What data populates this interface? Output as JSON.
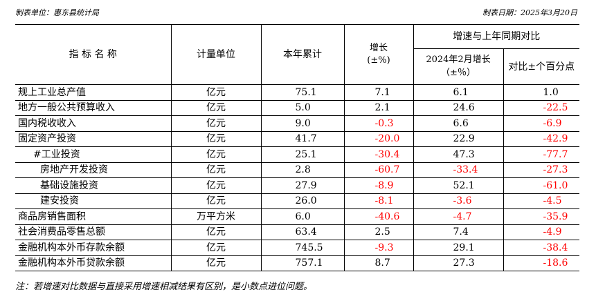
{
  "header": {
    "unit_label": "制表单位：惠东县统计局",
    "date_label": "制表日期：2025年3月20日"
  },
  "columns": {
    "name": "指 标 名 称",
    "unit": "计量单位",
    "ytd": "本年累计",
    "growth_line1": "增长",
    "growth_line2": "(±%)",
    "compare_group": "增速与上年同期对比",
    "prev_growth_line1": "2024年2月增长",
    "prev_growth_line2": "（±％）",
    "diff": "对比±个百分点"
  },
  "rows": [
    {
      "name": "规上工业总产值",
      "unit": "亿元",
      "ytd": "75.1",
      "growth": "7.1",
      "prev": "6.1",
      "diff": "1.0"
    },
    {
      "name": "地方一般公共预算收入",
      "unit": "亿元",
      "ytd": "5.0",
      "growth": "2.1",
      "prev": "24.6",
      "diff": "-22.5"
    },
    {
      "name": "国内税收收入",
      "unit": "亿元",
      "ytd": "9.0",
      "growth": "-0.3",
      "prev": "6.6",
      "diff": "-6.9"
    },
    {
      "name": "固定资产投资",
      "unit": "亿元",
      "ytd": "41.7",
      "growth": "-20.0",
      "prev": "22.9",
      "diff": "-42.9"
    },
    {
      "name": "#工业投资",
      "unit": "亿元",
      "ytd": "25.1",
      "growth": "-30.4",
      "prev": "47.3",
      "diff": "-77.7"
    },
    {
      "name": "房地产开发投资",
      "unit": "亿元",
      "ytd": "2.8",
      "growth": "-60.7",
      "prev": "-33.4",
      "diff": "-27.3"
    },
    {
      "name": "基础设施投资",
      "unit": "亿元",
      "ytd": "27.9",
      "growth": "-8.9",
      "prev": "52.1",
      "diff": "-61.0"
    },
    {
      "name": "建安投资",
      "unit": "亿元",
      "ytd": "26.0",
      "growth": "-8.1",
      "prev": "-3.6",
      "diff": "-4.5"
    },
    {
      "name": "商品房销售面积",
      "unit": "万平方米",
      "ytd": "6.0",
      "growth": "-40.6",
      "prev": "-4.7",
      "diff": "-35.9"
    },
    {
      "name": "社会消费品零售总额",
      "unit": "亿元",
      "ytd": "63.4",
      "growth": "2.5",
      "prev": "7.4",
      "diff": "-4.9"
    },
    {
      "name": "金融机构本外币存款余额",
      "unit": "亿元",
      "ytd": "745.5",
      "growth": "-9.3",
      "prev": "29.1",
      "diff": "-38.4"
    },
    {
      "name": "金融机构本外币贷款余额",
      "unit": "亿元",
      "ytd": "757.1",
      "growth": "8.7",
      "prev": "27.3",
      "diff": "-18.6"
    }
  ],
  "note": "注：若增速对比数据与直接采用增速相减结果有区别，是小数点进位问题。",
  "colors": {
    "negative": "#ff0000",
    "text": "#000000"
  }
}
